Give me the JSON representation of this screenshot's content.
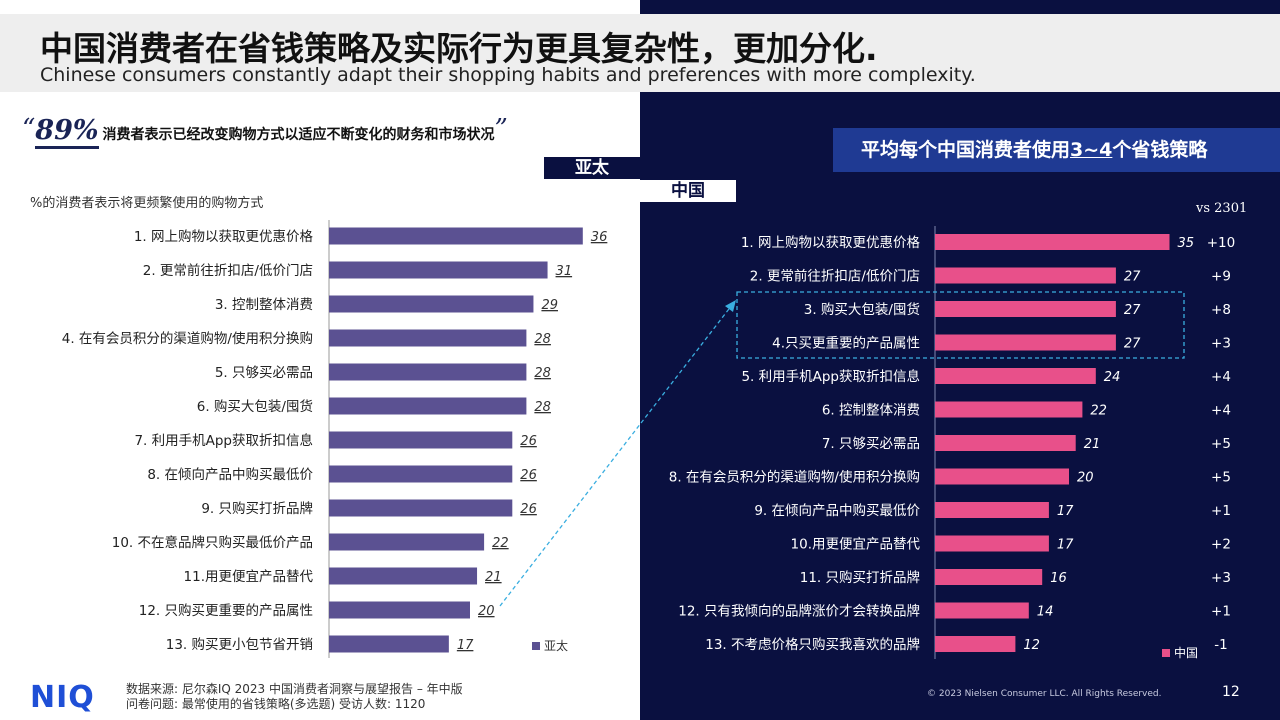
{
  "header": {
    "title_cn": "中国消费者在省钱策略及实际行为更具复杂性，更加分化.",
    "title_en": "Chinese consumers constantly adapt their shopping habits and preferences with more complexity."
  },
  "quote": {
    "open_mark": "“",
    "percent": "89%",
    "text": "消费者表示已经改变购物方式以适应不断变化的财务和市场状况",
    "close_mark": "”"
  },
  "tags": {
    "apac": "亚太",
    "china": "中国"
  },
  "right_title": {
    "prefix": "平均每个中国消费者使用",
    "highlight": "3~4",
    "suffix": "个省钱策略"
  },
  "left_note": "%的消费者表示将更频繁使用的购物方式",
  "vs_label": "vs 2301",
  "chart_data": [
    {
      "type": "bar",
      "orientation": "horizontal",
      "categories": [
        "1. 网上购物以获取更优惠价格",
        "2. 更常前往折扣店/低价门店",
        "3. 控制整体消费",
        "4. 在有会员积分的渠道购物/使用积分换购",
        "5. 只够买必需品",
        "6. 购买大包装/囤货",
        "7. 利用手机App获取折扣信息",
        "8. 在倾向产品中购买最低价",
        "9. 只购买打折品牌",
        "10. 不在意品牌只购买最低价产品",
        "11.用更便宜产品替代",
        "12. 只购买更重要的产品属性",
        "13. 购买更小包节省开销"
      ],
      "series": [
        {
          "name": "亚太",
          "values": [
            36,
            31,
            29,
            28,
            28,
            28,
            26,
            26,
            26,
            22,
            21,
            20,
            17
          ]
        }
      ],
      "color": "#5b5192",
      "label_color": "#333333",
      "xlim": [
        0,
        40
      ]
    },
    {
      "type": "bar",
      "orientation": "horizontal",
      "categories": [
        "1. 网上购物以获取更优惠价格",
        "2. 更常前往折扣店/低价门店",
        "3. 购买大包装/囤货",
        "4.只买更重要的产品属性",
        "5. 利用手机App获取折扣信息",
        "6. 控制整体消费",
        "7. 只够买必需品",
        "8. 在有会员积分的渠道购物/使用积分换购",
        "9. 在倾向产品中购买最低价",
        "10.用更便宜产品替代",
        "11. 只购买打折品牌",
        "12. 只有我倾向的品牌涨价才会转换品牌",
        "13. 不考虑价格只购买我喜欢的品牌"
      ],
      "series": [
        {
          "name": "中国",
          "values": [
            35,
            27,
            27,
            27,
            24,
            22,
            21,
            20,
            17,
            17,
            16,
            14,
            12
          ]
        }
      ],
      "vs_2301": [
        "+10",
        "+9",
        "+8",
        "+3",
        "+4",
        "+4",
        "+5",
        "+5",
        "+1",
        "+2",
        "+3",
        "+1",
        "-1"
      ],
      "color": "#e8508a",
      "label_color": "#ffffff",
      "xlim": [
        0,
        40
      ]
    }
  ],
  "footer": {
    "source_line1": "数据来源: 尼尔森IQ 2023 中国消费者洞察与展望报告 – 年中版",
    "source_line2": "问卷问题: 最常使用的省钱策略(多选题) 受访人数: 1120",
    "logo": "NIQ",
    "copyright": "© 2023 Nielsen Consumer LLC. All Rights Reserved.",
    "page_number": "12"
  },
  "colors": {
    "navy": "#0a1040",
    "title_box": "#1f3a93",
    "apac_bar": "#5b5192",
    "china_bar": "#e8508a",
    "highlight_dash": "#3aaee0",
    "logo_blue": "#1f4fd6"
  }
}
